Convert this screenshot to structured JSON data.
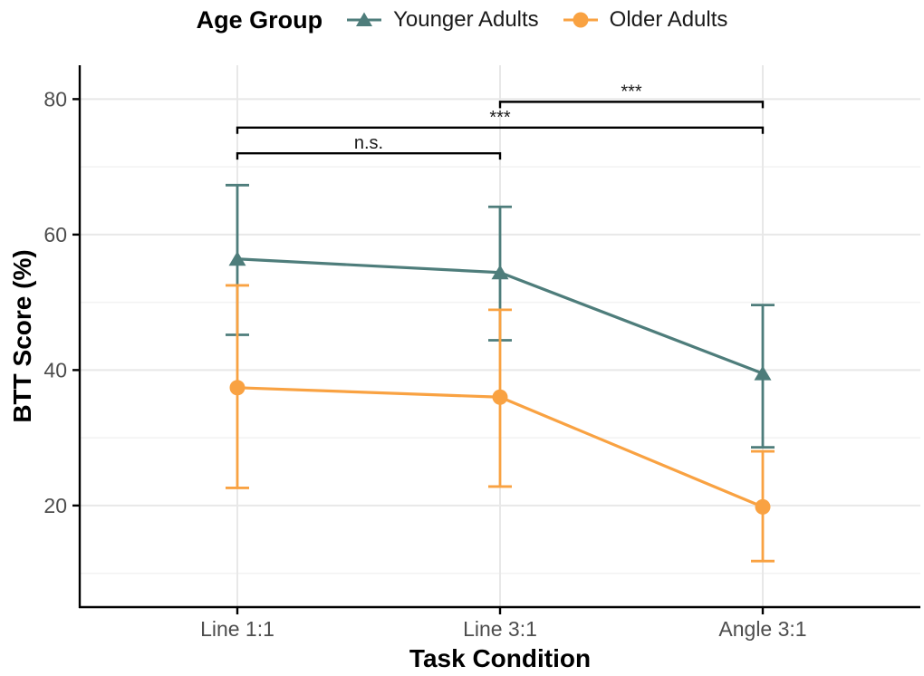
{
  "chart_data": {
    "type": "line",
    "legend_title": "Age Group",
    "xlabel": "Task Condition",
    "ylabel": "BTT Score (%)",
    "categories": [
      "Line 1:1",
      "Line 3:1",
      "Angle 3:1"
    ],
    "ylim": [
      5,
      85
    ],
    "yticks": [
      20,
      40,
      60,
      80
    ],
    "yticks_minor": [
      10,
      30,
      50,
      70
    ],
    "grid": "on",
    "legend_position": "top-center",
    "series": [
      {
        "name": "Younger Adults",
        "color": "#4E7D7B",
        "marker": "triangle",
        "values": [
          56.4,
          54.4,
          39.5
        ],
        "ci_low": [
          45.2,
          44.4,
          28.6
        ],
        "ci_high": [
          67.3,
          64.1,
          49.6
        ]
      },
      {
        "name": "Older Adults",
        "color": "#F9A242",
        "marker": "circle",
        "values": [
          37.4,
          36.0,
          19.8
        ],
        "ci_low": [
          22.6,
          22.8,
          11.8
        ],
        "ci_high": [
          52.5,
          48.9,
          28.0
        ]
      }
    ],
    "annotations": [
      {
        "from": 0,
        "to": 1,
        "y": 72.0,
        "label": "n.s."
      },
      {
        "from": 0,
        "to": 2,
        "y": 75.8,
        "label": "***"
      },
      {
        "from": 1,
        "to": 2,
        "y": 79.6,
        "label": "***"
      }
    ],
    "colors": {
      "axis": "#000000",
      "tick_label": "#4D4D4D",
      "grid_major": "#E8E8E8",
      "grid_minor": "#F2F2F2",
      "annotation": "#1a1a1a"
    }
  }
}
